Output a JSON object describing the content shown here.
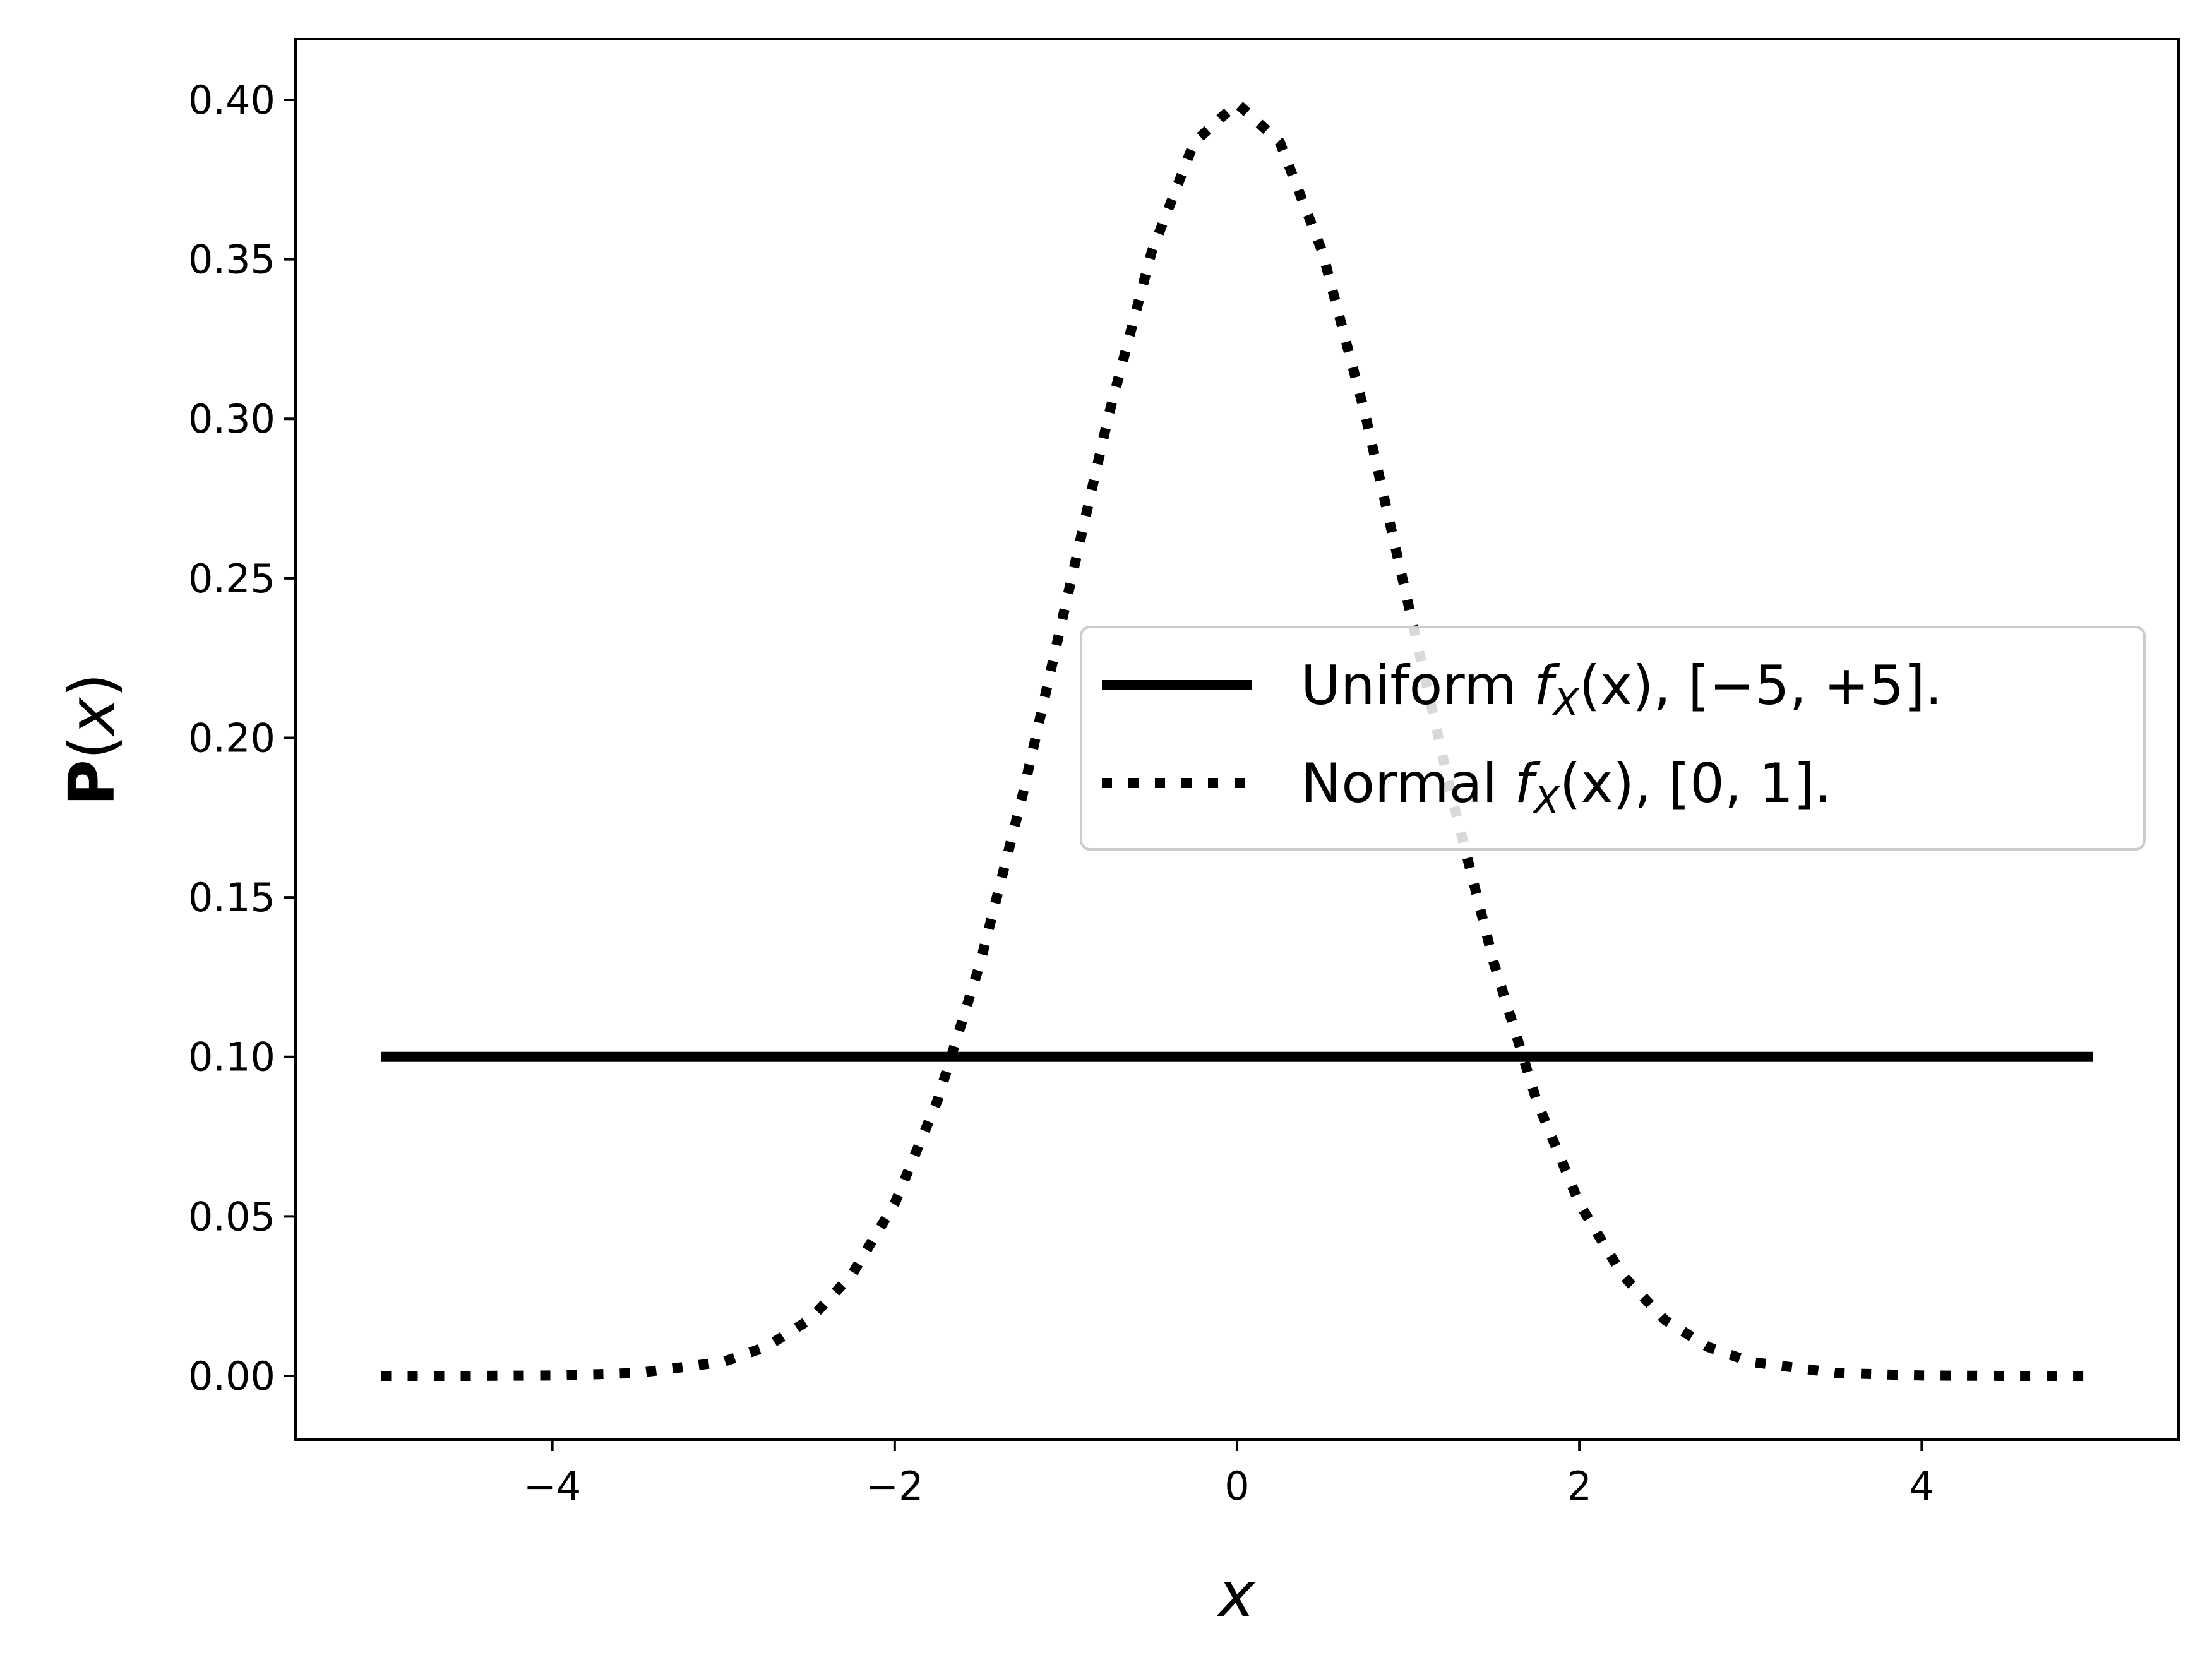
{
  "chart_data": {
    "type": "line",
    "xlabel": "x",
    "ylabel_main": "P",
    "ylabel_var": "x",
    "xlim": [
      -5.5,
      5.5
    ],
    "ylim": [
      -0.02,
      0.419
    ],
    "x_ticks": [
      -4,
      -2,
      0,
      2,
      4
    ],
    "x_tick_labels": [
      "−4",
      "−2",
      "0",
      "2",
      "4"
    ],
    "y_ticks": [
      0.0,
      0.05,
      0.1,
      0.15,
      0.2,
      0.25,
      0.3,
      0.35,
      0.4
    ],
    "y_tick_labels": [
      "0.00",
      "0.05",
      "0.10",
      "0.15",
      "0.20",
      "0.25",
      "0.30",
      "0.35",
      "0.40"
    ],
    "grid": false,
    "legend_position": "center-right",
    "series": [
      {
        "name": "Uniform f_X(x), [−5, +5].",
        "style": "solid",
        "color": "#000000",
        "x": [
          -5,
          5
        ],
        "y": [
          0.1,
          0.1
        ]
      },
      {
        "name": "Normal f_X(x), [0, 1].",
        "style": "dotted",
        "color": "#000000",
        "x": [
          -5,
          -4.5,
          -4,
          -3.5,
          -3,
          -2.75,
          -2.5,
          -2.25,
          -2,
          -1.75,
          -1.5,
          -1.25,
          -1,
          -0.75,
          -0.5,
          -0.25,
          0,
          0.25,
          0.5,
          0.75,
          1,
          1.25,
          1.5,
          1.75,
          2,
          2.25,
          2.5,
          2.75,
          3,
          3.5,
          4,
          4.5,
          5
        ],
        "y": [
          0.0,
          0.0,
          0.0001,
          0.0009,
          0.0044,
          0.0091,
          0.0175,
          0.0317,
          0.054,
          0.0863,
          0.1295,
          0.1826,
          0.242,
          0.3011,
          0.3521,
          0.3867,
          0.3989,
          0.3867,
          0.3521,
          0.3011,
          0.242,
          0.1826,
          0.1295,
          0.0863,
          0.054,
          0.0317,
          0.0175,
          0.0091,
          0.0044,
          0.0009,
          0.0001,
          0.0,
          0.0
        ]
      }
    ],
    "legend": {
      "uniform": {
        "name": "Uniform",
        "math_f": "f",
        "math_sub": "X",
        "math_arg": "(x), [−5, +5]."
      },
      "normal": {
        "name": "Normal",
        "math_f": "f",
        "math_sub": "X",
        "math_arg": "(x), [0, 1]."
      }
    }
  }
}
